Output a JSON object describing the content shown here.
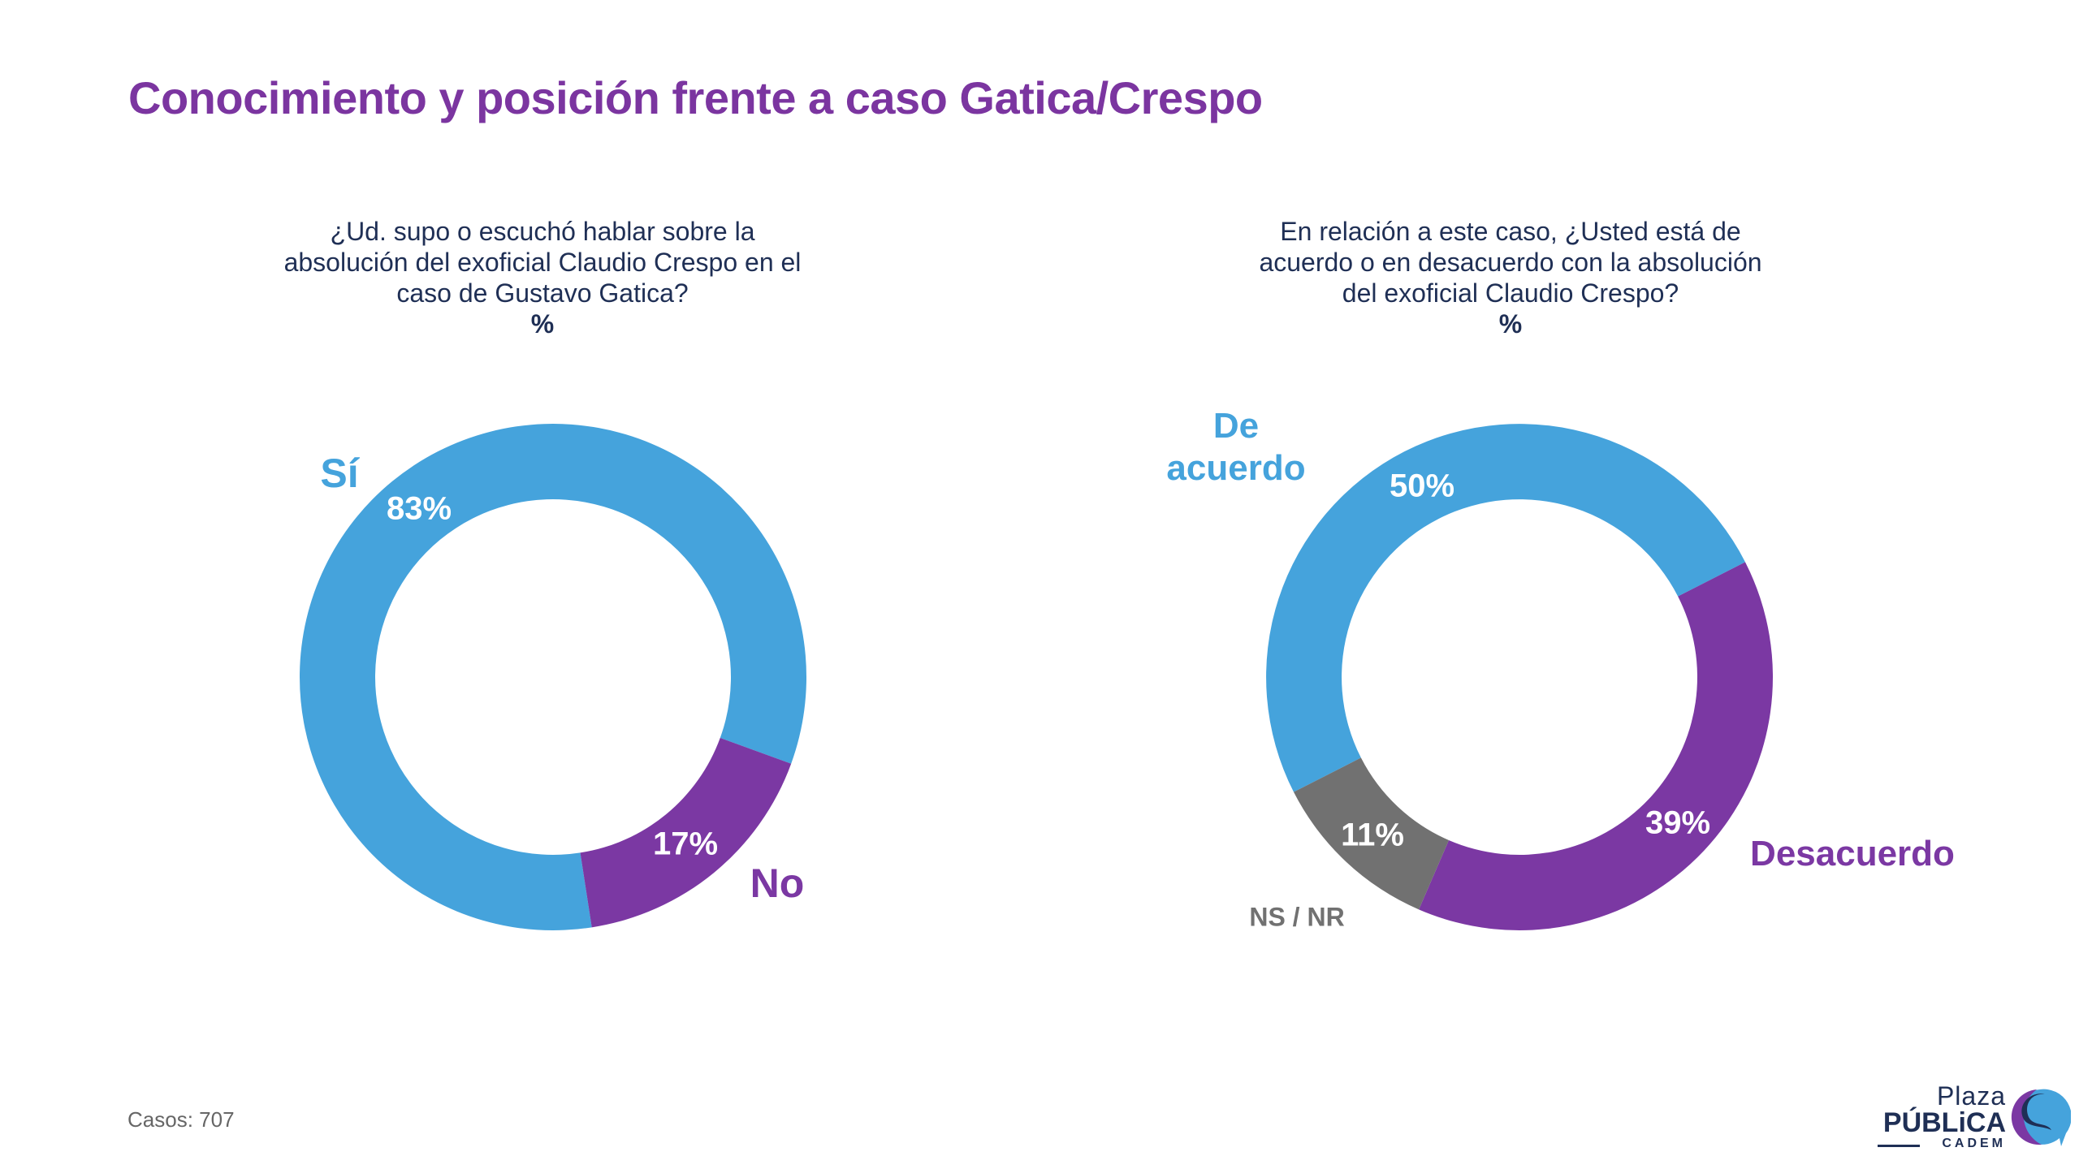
{
  "title": "Conocimiento y posición frente a caso Gatica/Crespo",
  "footer": {
    "cases": "Casos: 707"
  },
  "logo": {
    "line1": "Plaza",
    "line2": "PÚBLiCA",
    "line3": "CADEM"
  },
  "colors": {
    "blue": "#45A3DC",
    "purple": "#7B38A3",
    "grey": "#717171",
    "navy": "#1f2f55"
  },
  "chart_data": [
    {
      "type": "pie",
      "donut": true,
      "title": "¿Ud. supo o escuchó hablar sobre la absolución del exoficial Claudio Crespo en el caso de Gustavo Gatica?",
      "title_lines": [
        "¿Ud. supo o escuchó hablar sobre la",
        "absolución del exoficial Claudio Crespo en el",
        "caso de Gustavo Gatica?"
      ],
      "unit": "%",
      "categories": [
        "Sí",
        "No"
      ],
      "values": [
        83,
        17
      ],
      "value_labels": [
        "83%",
        "17%"
      ],
      "colors": [
        "#45A3DC",
        "#7B38A3"
      ]
    },
    {
      "type": "pie",
      "donut": true,
      "title": "En relación a este caso, ¿Usted está de acuerdo o en desacuerdo con la absolución del exoficial Claudio Crespo?",
      "title_lines": [
        "En relación a este caso, ¿Usted está de",
        "acuerdo o en desacuerdo con la absolución",
        "del exoficial Claudio Crespo?"
      ],
      "unit": "%",
      "categories": [
        "De acuerdo",
        "Desacuerdo",
        "NS / NR"
      ],
      "category_lines": [
        [
          "De",
          "acuerdo"
        ],
        [
          "Desacuerdo"
        ],
        [
          "NS / NR"
        ]
      ],
      "values": [
        50,
        39,
        11
      ],
      "value_labels": [
        "50%",
        "39%",
        "11%"
      ],
      "colors": [
        "#45A3DC",
        "#7B38A3",
        "#717171"
      ]
    }
  ]
}
